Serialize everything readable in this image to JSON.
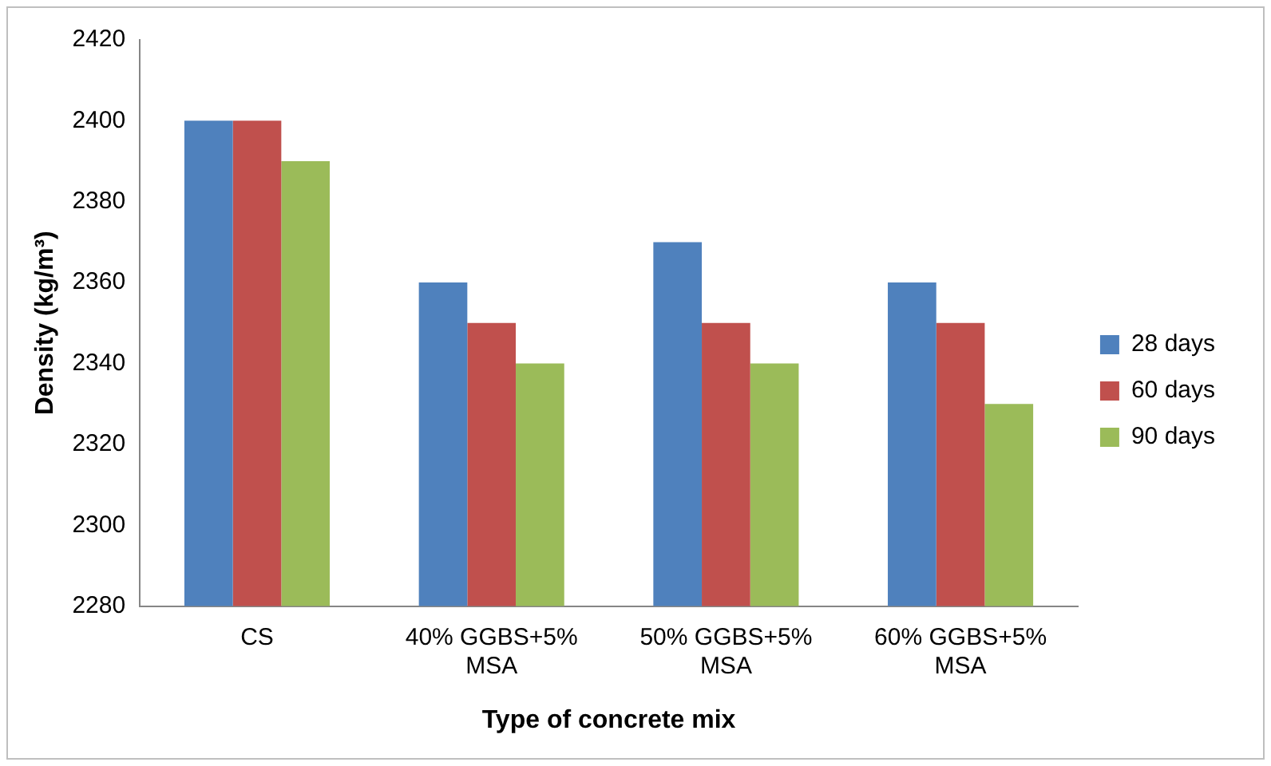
{
  "chart_data": {
    "type": "bar",
    "xlabel": "Type of concrete mix",
    "ylabel": "Density (kg/m³)",
    "categories": [
      "CS",
      "40% GGBS+5% MSA",
      "50% GGBS+5% MSA",
      "60% GGBS+5% MSA"
    ],
    "series": [
      {
        "name": "28 days",
        "color": "#4f81bd",
        "values": [
          2400,
          2360,
          2370,
          2360
        ]
      },
      {
        "name": "60 days",
        "color": "#c0504d",
        "values": [
          2400,
          2350,
          2350,
          2350
        ]
      },
      {
        "name": "90 days",
        "color": "#9bbb59",
        "values": [
          2390,
          2340,
          2340,
          2330
        ]
      }
    ],
    "ylim": [
      2280,
      2420
    ],
    "yticks": [
      2280,
      2300,
      2320,
      2340,
      2360,
      2380,
      2400,
      2420
    ],
    "grid": false,
    "legend": "right"
  }
}
